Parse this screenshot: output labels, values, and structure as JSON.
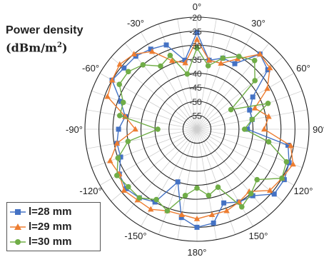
{
  "chart_data": {
    "type": "polar-line",
    "title": "Power density",
    "unit_base": "(dBm/m",
    "unit_exp": "2",
    "unit_close": ")",
    "radial_ticks": [
      -20,
      -25,
      -30,
      -35,
      -40,
      -45,
      -50,
      -55
    ],
    "radial_range": [
      -60,
      -20
    ],
    "radial_tick_labels": [
      "-20",
      "-25",
      "-30",
      "-35",
      "-40",
      "-45",
      "-50",
      "-55"
    ],
    "angle_labels": [
      {
        "angle": 0,
        "label": "0°"
      },
      {
        "angle": 30,
        "label": "30°"
      },
      {
        "angle": 60,
        "label": "60°"
      },
      {
        "angle": 90,
        "label": "90°"
      },
      {
        "angle": 120,
        "label": "120°"
      },
      {
        "angle": 150,
        "label": "150°"
      },
      {
        "angle": 180,
        "label": "180°"
      },
      {
        "angle": -150,
        "label": "-150°"
      },
      {
        "angle": -120,
        "label": "-120°"
      },
      {
        "angle": -90,
        "label": "-90°"
      },
      {
        "angle": -60,
        "label": "-60°"
      },
      {
        "angle": -30,
        "label": "-30°"
      }
    ],
    "angles": [
      0,
      10,
      20,
      30,
      40,
      50,
      60,
      70,
      80,
      90,
      100,
      110,
      120,
      130,
      140,
      150,
      160,
      170,
      180,
      190,
      200,
      210,
      220,
      230,
      240,
      250,
      260,
      270,
      280,
      290,
      300,
      310,
      320,
      330,
      340,
      350
    ],
    "series": [
      {
        "name": "l=28 mm",
        "color": "#4472C4",
        "marker": "square",
        "values": [
          -25.5,
          -35,
          -33,
          -33,
          -25,
          -27,
          -37,
          -40,
          -40,
          -42,
          -27,
          -25,
          -24,
          -24,
          -29,
          -30,
          -32,
          -26,
          -25,
          -28,
          -40,
          -30,
          -28,
          -27,
          -28,
          -31,
          -31,
          -32,
          -34,
          -31,
          -25,
          -26,
          -26,
          -27,
          -28,
          -35
        ]
      },
      {
        "name": "l=29 mm",
        "color": "#ED7D31",
        "marker": "triangle",
        "values": [
          -28,
          -35,
          -35,
          -31,
          -25,
          -26,
          -31,
          -38,
          -34,
          -36,
          -26,
          -23.5,
          -25,
          -26,
          -31,
          -30,
          -29,
          -29,
          -28,
          -29,
          -29,
          -27,
          -27,
          -26,
          -28,
          -27,
          -31,
          -38,
          -34,
          -26,
          -25,
          -24,
          -25,
          -28,
          -34,
          -36
        ]
      },
      {
        "name": "l=30 mm",
        "color": "#70AD47",
        "marker": "circle",
        "values": [
          -31,
          -37,
          -33,
          -30,
          -28,
          -33,
          -46,
          -33,
          -40,
          -43,
          -34,
          -26,
          -25,
          -32,
          -30,
          -28,
          -38,
          -36,
          -39,
          -36,
          -29,
          -31,
          -28,
          -28,
          -27,
          -30,
          -35,
          -46,
          -32,
          -32,
          -28,
          -28,
          -30,
          -34,
          -32,
          -40
        ]
      }
    ]
  }
}
